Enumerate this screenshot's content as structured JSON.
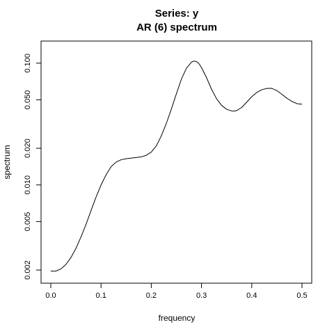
{
  "chart_data": {
    "type": "line",
    "title": "Series: y",
    "subtitle": "AR (6) spectrum",
    "xlabel": "frequency",
    "ylabel": "spectrum",
    "x_scale": "linear",
    "y_scale": "log",
    "xlim": [
      0,
      0.5
    ],
    "ylim": [
      0.00185,
      0.128
    ],
    "x_ticks": [
      0.0,
      0.1,
      0.2,
      0.3,
      0.4,
      0.5
    ],
    "x_tick_labels": [
      "0.0",
      "0.1",
      "0.2",
      "0.3",
      "0.4",
      "0.5"
    ],
    "y_ticks": [
      0.002,
      0.005,
      0.01,
      0.02,
      0.05,
      0.1
    ],
    "y_tick_labels": [
      "0.002",
      "0.005",
      "0.010",
      "0.020",
      "0.050",
      "0.100"
    ],
    "grid": false,
    "legend": "none",
    "line_color": "#000000",
    "series": [
      {
        "x": [
          0.0,
          0.01,
          0.02,
          0.03,
          0.04,
          0.05,
          0.06,
          0.07,
          0.08,
          0.09,
          0.1,
          0.11,
          0.12,
          0.13,
          0.14,
          0.15,
          0.16,
          0.17,
          0.18,
          0.19,
          0.2,
          0.21,
          0.22,
          0.23,
          0.24,
          0.25,
          0.26,
          0.27,
          0.28,
          0.285,
          0.29,
          0.295,
          0.3,
          0.31,
          0.32,
          0.33,
          0.34,
          0.35,
          0.36,
          0.365,
          0.37,
          0.38,
          0.39,
          0.4,
          0.41,
          0.42,
          0.43,
          0.437,
          0.44,
          0.45,
          0.46,
          0.47,
          0.48,
          0.49,
          0.5
        ],
        "y": [
          0.00196,
          0.00196,
          0.00204,
          0.00222,
          0.00253,
          0.00301,
          0.00373,
          0.00473,
          0.00614,
          0.00792,
          0.01,
          0.0121,
          0.0141,
          0.0154,
          0.0161,
          0.0164,
          0.0166,
          0.0168,
          0.017,
          0.0175,
          0.0186,
          0.0209,
          0.0253,
          0.032,
          0.042,
          0.056,
          0.074,
          0.091,
          0.102,
          0.104,
          0.103,
          0.099,
          0.092,
          0.076,
          0.061,
          0.051,
          0.045,
          0.0418,
          0.0405,
          0.0404,
          0.0408,
          0.0433,
          0.0478,
          0.053,
          0.0575,
          0.0605,
          0.062,
          0.0622,
          0.062,
          0.0595,
          0.0555,
          0.0515,
          0.0485,
          0.0465,
          0.046
        ]
      }
    ]
  }
}
